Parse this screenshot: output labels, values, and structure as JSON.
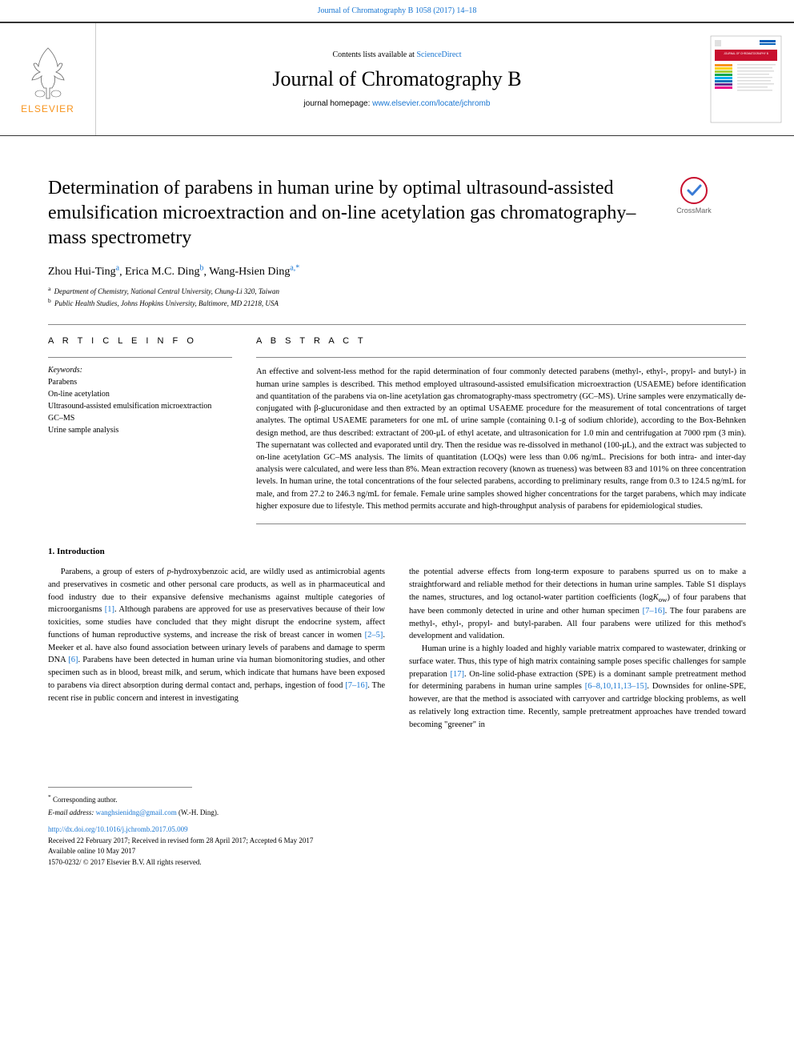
{
  "header": {
    "top_link_text": "Journal of Chromatography B 1058 (2017) 14–18",
    "contents_prefix": "Contents lists available at ",
    "contents_link": "ScienceDirect",
    "journal_title": "Journal of Chromatography B",
    "homepage_prefix": "journal homepage: ",
    "homepage_link": "www.elsevier.com/locate/jchromb",
    "elsevier_text": "ELSEVIER"
  },
  "cover": {
    "title_top": "JOURNAL OF CHROMATOGRAPHY B",
    "bg": "#ffffff",
    "band_color": "#c8102e",
    "stripe_colors": [
      "#f7941d",
      "#ffd200",
      "#a6ce39",
      "#00a651",
      "#00aeef",
      "#0072bc",
      "#662d91",
      "#ec008c"
    ]
  },
  "article": {
    "title": "Determination of parabens in human urine by optimal ultrasound-assisted emulsification microextraction and on-line acetylation gas chromatography–mass spectrometry",
    "crossmark_label": "CrossMark"
  },
  "authors": {
    "list": [
      {
        "name": "Zhou Hui-Ting",
        "sup": "a"
      },
      {
        "name": "Erica M.C. Ding",
        "sup": "b"
      },
      {
        "name": "Wang-Hsien Ding",
        "sup": "a,*"
      }
    ]
  },
  "affiliations": [
    {
      "sup": "a",
      "text": "Department of Chemistry, National Central University, Chung-Li 320, Taiwan"
    },
    {
      "sup": "b",
      "text": "Public Health Studies, Johns Hopkins University, Baltimore, MD 21218, USA"
    }
  ],
  "info": {
    "label": "A R T I C L E   I N F O",
    "keywords_label": "Keywords:",
    "keywords": [
      "Parabens",
      "On-line acetylation",
      "Ultrasound-assisted emulsification microextraction",
      "GC–MS",
      "Urine sample analysis"
    ]
  },
  "abstract": {
    "label": "A B S T R A C T",
    "text": "An effective and solvent-less method for the rapid determination of four commonly detected parabens (methyl-, ethyl-, propyl- and butyl-) in human urine samples is described. This method employed ultrasound-assisted emulsification microextraction (USAEME) before identification and quantitation of the parabens via on-line acetylation gas chromatography-mass spectrometry (GC–MS). Urine samples were enzymatically de-conjugated with β-glucuronidase and then extracted by an optimal USAEME procedure for the measurement of total concentrations of target analytes. The optimal USAEME parameters for one mL of urine sample (containing 0.1-g of sodium chloride), according to the Box-Behnken design method, are thus described: extractant of 200-μL of ethyl acetate, and ultrasonication for 1.0 min and centrifugation at 7000 rpm (3 min). The supernatant was collected and evaporated until dry. Then the residue was re-dissolved in methanol (100-μL), and the extract was subjected to on-line acetylation GC–MS analysis. The limits of quantitation (LOQs) were less than 0.06 ng/mL. Precisions for both intra- and inter-day analysis were calculated, and were less than 8%. Mean extraction recovery (known as trueness) was between 83 and 101% on three concentration levels. In human urine, the total concentrations of the four selected parabens, according to preliminary results, range from 0.3 to 124.5 ng/mL for male, and from 27.2 to 246.3 ng/mL for female. Female urine samples showed higher concentrations for the target parabens, which may indicate higher exposure due to lifestyle. This method permits accurate and high-throughput analysis of parabens for epidemiological studies."
  },
  "body": {
    "heading": "1. Introduction",
    "col1_p1_a": "Parabens, a group of esters of ",
    "col1_p1_ital": "p",
    "col1_p1_b": "-hydroxybenzoic acid, are wildly used as antimicrobial agents and preservatives in cosmetic and other personal care products, as well as in pharmaceutical and food industry due to their expansive defensive mechanisms against multiple categories of microorganisms ",
    "col1_ref1": "[1]",
    "col1_p1_c": ". Although parabens are approved for use as preservatives because of their low toxicities, some studies have concluded that they might disrupt the endocrine system, affect functions of human reproductive systems, and increase the risk of breast cancer in women ",
    "col1_ref2": "[2–5]",
    "col1_p1_d": ". Meeker et al. have also found association between urinary levels of parabens and damage to sperm DNA ",
    "col1_ref3": "[6]",
    "col1_p1_e": ". Parabens have been detected in human urine via human biomonitoring studies, and other specimen such as in blood, breast milk, and serum, which indicate that humans have been exposed to parabens via direct absorption during dermal contact and, perhaps, ingestion of food ",
    "col1_ref4": "[7–16]",
    "col1_p1_f": ". The recent rise in public concern and interest in investigating",
    "col2_p1_a": "the potential adverse effects from long-term exposure to parabens spurred us on to make a straightforward and reliable method for their detections in human urine samples. Table S1 displays the names, structures, and log octanol-water partition coefficients (log",
    "col2_p1_ital": "K",
    "col2_p1_sub": "ow",
    "col2_p1_b": ") of four parabens that have been commonly detected in urine and other human specimen ",
    "col2_ref1": "[7–16]",
    "col2_p1_c": ". The four parabens are methyl-, ethyl-, propyl- and butyl-paraben. All four parabens were utilized for this method's development and validation.",
    "col2_p2_a": "Human urine is a highly loaded and highly variable matrix compared to wastewater, drinking or surface water. Thus, this type of high matrix containing sample poses specific challenges for sample preparation ",
    "col2_ref2": "[17]",
    "col2_p2_b": ". On-line solid-phase extraction (SPE) is a dominant sample pretreatment method for determining parabens in human urine samples ",
    "col2_ref3": "[6–8,10,11,13–15]",
    "col2_p2_c": ". Downsides for online-SPE, however, are that the method is associated with carryover and cartridge blocking problems, as well as relatively long extraction time. Recently, sample pretreatment approaches have trended toward becoming \"greener\" in"
  },
  "footer": {
    "corr_marker": "*",
    "corr_label": "Corresponding author.",
    "email_label": "E-mail address:",
    "email": "wanghsienidng@gmail.com",
    "email_suffix": "(W.-H. Ding).",
    "doi": "http://dx.doi.org/10.1016/j.jchromb.2017.05.009",
    "received": "Received 22 February 2017; Received in revised form 28 April 2017; Accepted 6 May 2017",
    "available": "Available online 10 May 2017",
    "copyright": "1570-0232/ © 2017 Elsevier B.V. All rights reserved."
  },
  "colors": {
    "link": "#1976d2",
    "orange": "#f7941d",
    "text": "#000000",
    "rule": "#888888"
  }
}
